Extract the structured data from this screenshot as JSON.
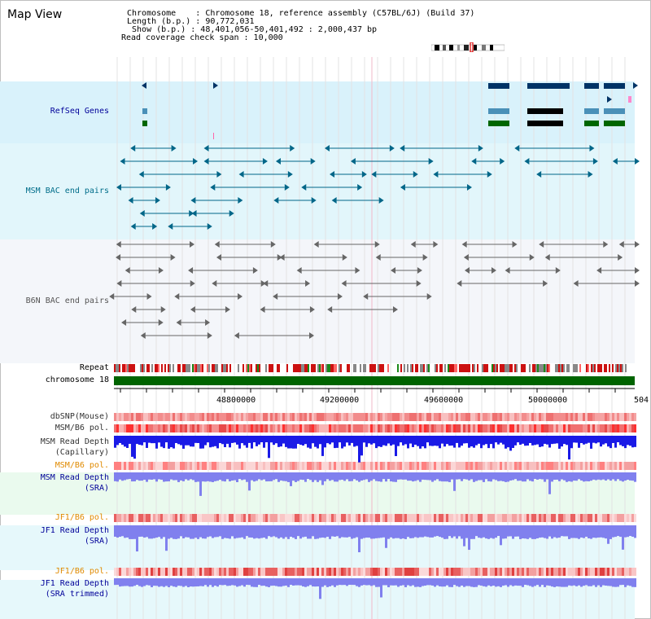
{
  "page": {
    "title": "Map View"
  },
  "info": {
    "chromosome_line": "Chromosome    : Chromosome 18, reference assembly (C57BL/6J) (Build 37)",
    "length_line": "Length (b.p.) : 90,772,031",
    "show_line": " Show (b.p.) : 48,401,056-50,401,492 : 2,000,437 bp",
    "coverage_line": "Read coverage check span : 10,000"
  },
  "tracks": {
    "refseq_genes": "RefSeq Genes",
    "msm_bac": "MSM BAC end pairs",
    "b6n_bac": "B6N BAC end pairs",
    "repeat": "Repeat",
    "chromosome": "chromosome 18",
    "dbsnp": "dbSNP(Mouse)",
    "msm_b6_pol_1": "MSM/B6 pol.",
    "msm_read_depth_cap_1": "MSM Read Depth",
    "msm_read_depth_cap_2": "(Capillary)",
    "msm_b6_pol_2": "MSM/B6 pol.",
    "msm_read_depth_sra_1": "MSM Read Depth",
    "msm_read_depth_sra_2": "(SRA)",
    "jf1_b6_pol_1": "JF1/B6 pol.",
    "jf1_read_depth_sra_1": "JF1 Read Depth",
    "jf1_read_depth_sra_2": "(SRA)",
    "jf1_b6_pol_2": "JF1/B6 pol.",
    "jf1_read_depth_trim_1": "JF1 Read Depth",
    "jf1_read_depth_trim_2": "(SRA trimmed)"
  },
  "axis": {
    "ticks": [
      "48800000",
      "49200000",
      "49600000",
      "50000000",
      "504"
    ]
  },
  "colors": {
    "genes_blue": "#003366",
    "genes_teal": "#4a90b8",
    "genes_green": "#006600",
    "msm_bac": "#006688",
    "b6n_bac": "#666666",
    "chromosome": "#006400",
    "depth_dark": "#1a1ae6",
    "depth_light": "#8080ee",
    "label_orange": "#e08a00",
    "label_navy": "#000099",
    "label_teal": "#006d8a"
  }
}
